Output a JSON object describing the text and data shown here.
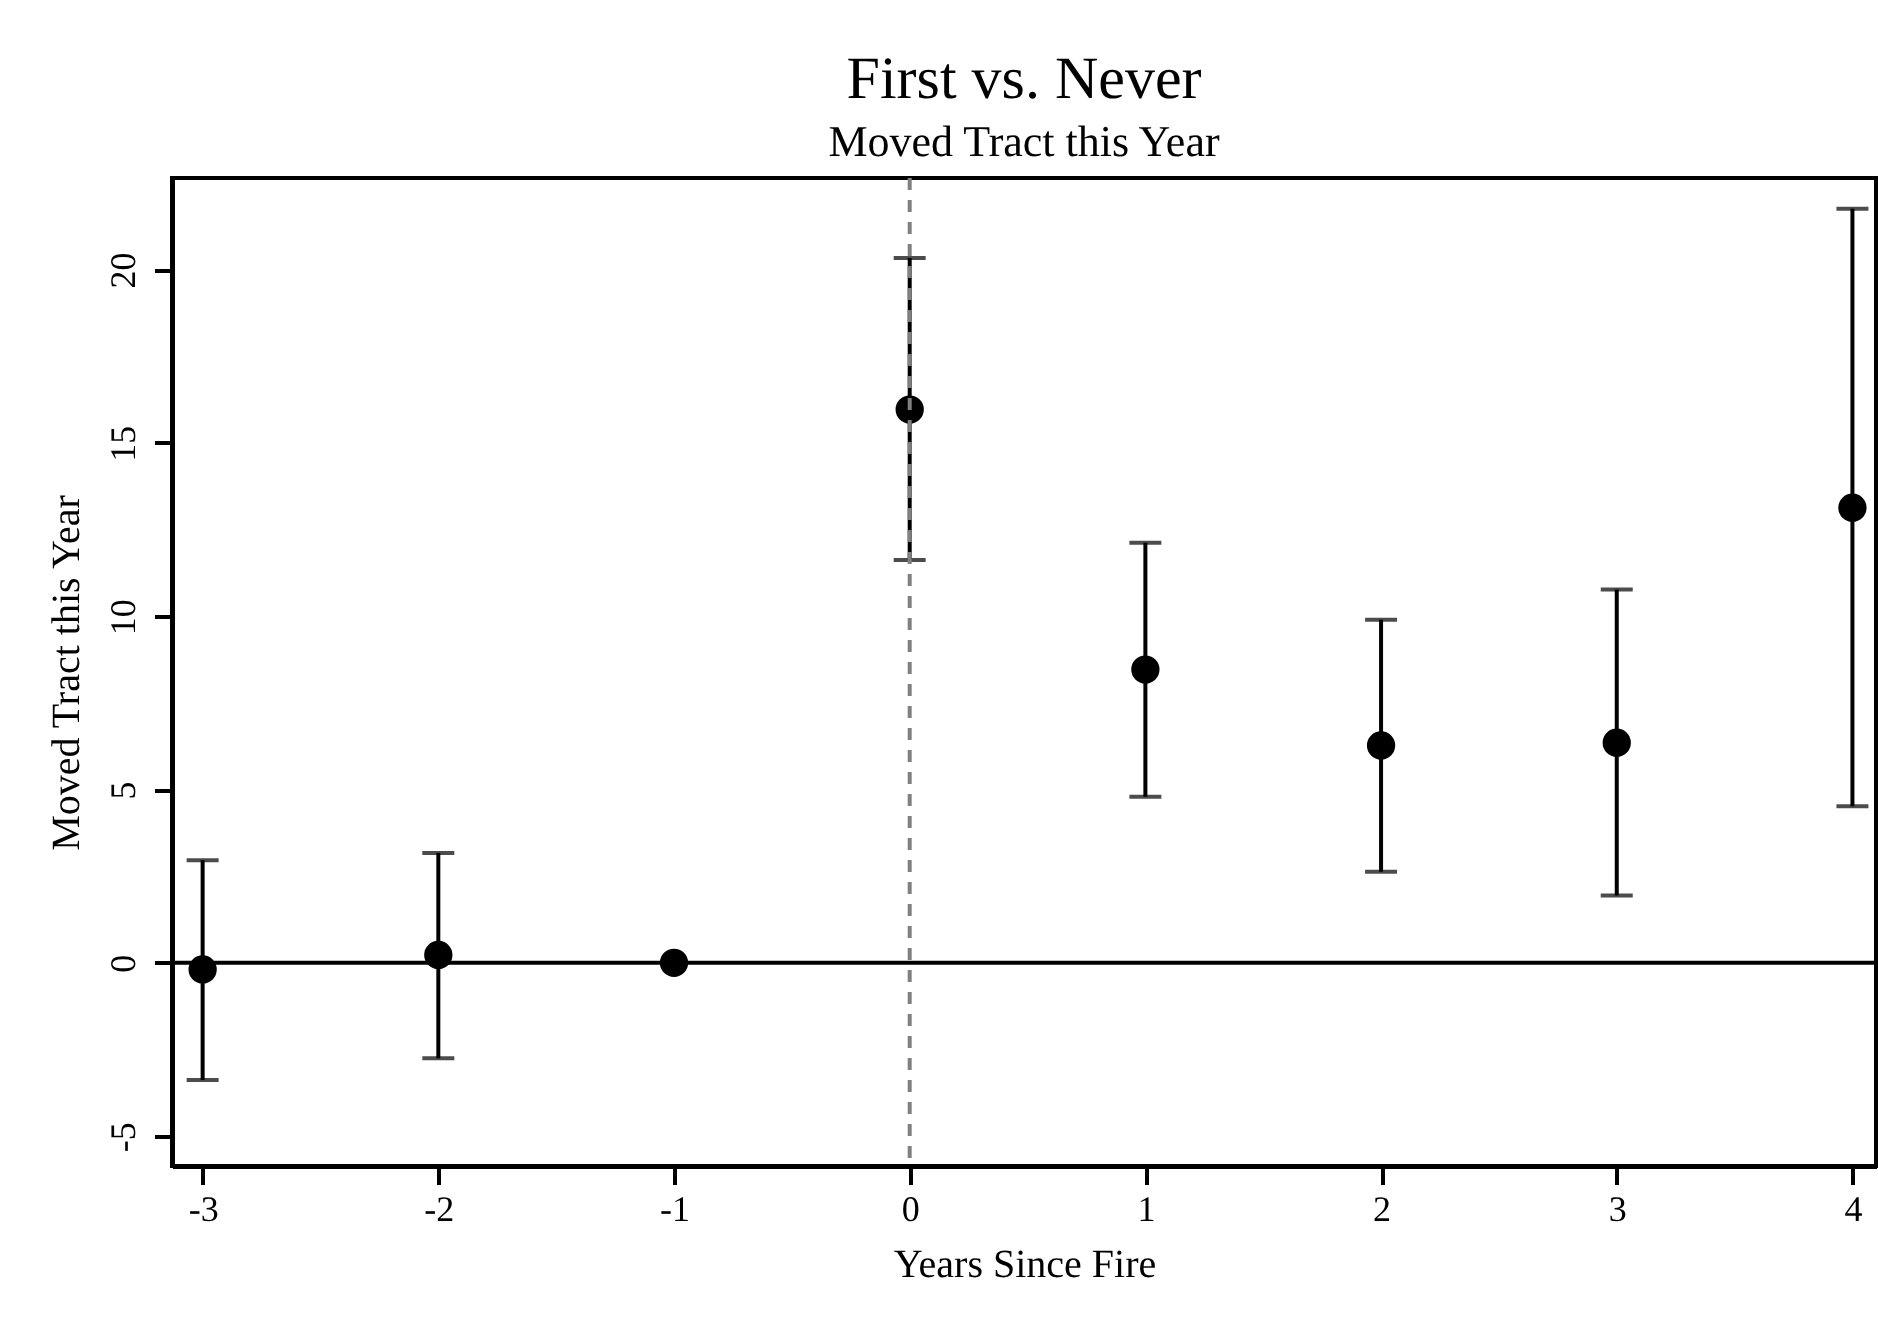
{
  "chart_data": {
    "type": "scatter",
    "title": "First vs. Never",
    "subtitle": "Moved Tract this Year",
    "xlabel": "Years Since Fire",
    "ylabel": "Moved Tract this Year",
    "x": [
      -3,
      -2,
      -1,
      0,
      1,
      2,
      3,
      4
    ],
    "series": [
      {
        "color": "#000000",
        "values": [
          -0.19,
          0.23,
          0,
          15.96,
          8.46,
          6.27,
          6.35,
          13.13
        ],
        "errors": [
          [
            -3.38,
            2.96
          ],
          [
            -2.75,
            3.17
          ],
          null,
          [
            11.62,
            20.33
          ],
          [
            4.79,
            12.12
          ],
          [
            2.63,
            9.9
          ],
          [
            1.94,
            10.77
          ],
          [
            4.52,
            21.75
          ]
        ]
      }
    ],
    "marker": "circle",
    "grid": false,
    "legend": false,
    "xlim": [
      -3.13,
      4.1
    ],
    "ylim": [
      -5.86,
      22.64
    ],
    "xticks": [
      -3,
      -2,
      -1,
      0,
      1,
      2,
      3,
      4
    ],
    "yticks": [
      -5,
      0,
      5,
      10,
      15,
      20
    ],
    "ref_lines": [
      {
        "axis": "y",
        "value": 0,
        "color": "#000000",
        "line_style": "solid"
      },
      {
        "axis": "x",
        "value": 0,
        "color": "#808080",
        "line_style": "dashed"
      }
    ]
  }
}
